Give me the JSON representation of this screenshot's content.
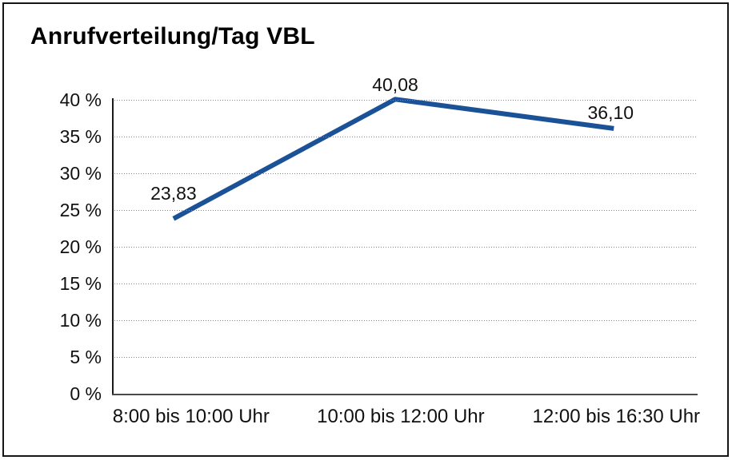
{
  "chart_data": {
    "type": "line",
    "title": "Anrufverteilung/Tag VBL",
    "categories": [
      "8:00 bis 10:00 Uhr",
      "10:00 bis 12:00 Uhr",
      "12:00 bis 16:30 Uhr"
    ],
    "values": [
      23.83,
      40.08,
      36.1
    ],
    "value_labels": [
      "23,83",
      "40,08",
      "36,10"
    ],
    "xlabel": "",
    "ylabel": "",
    "ylim": [
      0,
      40
    ],
    "ytick_step": 5,
    "ytick_labels": [
      "0 %",
      "5 %",
      "10 %",
      "15 %",
      "20 %",
      "25 %",
      "30 %",
      "35 %",
      "40 %"
    ],
    "grid": "horizontal-dotted",
    "legend": "none",
    "colors": {
      "line": "#1b5196",
      "axis": "#1a1a1a",
      "gridline": "#858585",
      "text": "#111111",
      "background": "#ffffff",
      "frame_border": "#161616"
    }
  }
}
